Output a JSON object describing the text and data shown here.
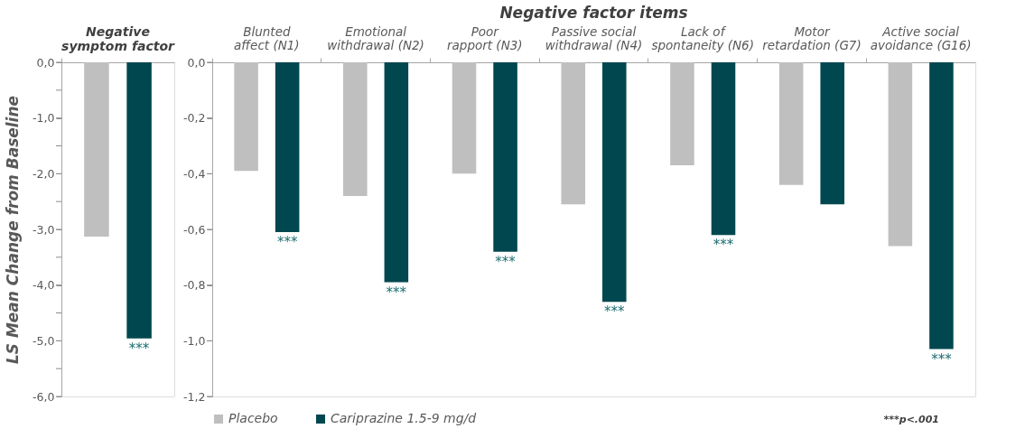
{
  "chart_data": [
    {
      "type": "bar",
      "ylabel": "LS Mean Change from Baseline",
      "categories": [
        "Negative symptom factor"
      ],
      "series": [
        {
          "color": "#bfbfbf",
          "values": [
            -3.13
          ]
        },
        {
          "color": "#00474f",
          "values": [
            -4.96
          ],
          "value_labels": [
            "***"
          ]
        }
      ],
      "ylim": [
        -6,
        0
      ],
      "yticks": [
        {
          "value": 0,
          "label": "0,0"
        },
        {
          "value": -0.5,
          "label": null
        },
        {
          "value": -1,
          "label": "-1,0"
        },
        {
          "value": -1.5,
          "label": null
        },
        {
          "value": -2,
          "label": "-2,0"
        },
        {
          "value": -2.5,
          "label": null
        },
        {
          "value": -3,
          "label": "-3,0"
        },
        {
          "value": -3.5,
          "label": null
        },
        {
          "value": -4,
          "label": "-4,0"
        },
        {
          "value": -4.5,
          "label": null
        },
        {
          "value": -5,
          "label": "-5,0"
        },
        {
          "value": -5.5,
          "label": null
        },
        {
          "value": -6,
          "label": "-6,0"
        }
      ],
      "legend": false,
      "grid": false
    },
    {
      "type": "bar",
      "title": "Negative factor items",
      "categories": [
        "Blunted affect (N1)",
        "Emotional withdrawal (N2)",
        "Poor rapport (N3)",
        "Passive social withdrawal (N4)",
        "Lack of spontaneity (N6)",
        "Motor retardation (G7)",
        "Active social avoidance (G16)"
      ],
      "series": [
        {
          "name": "Placebo",
          "color": "#bfbfbf",
          "values": [
            -0.39,
            -0.48,
            -0.4,
            -0.51,
            -0.37,
            -0.44,
            -0.66
          ]
        },
        {
          "name": "Cariprazine 1.5-9 mg/d",
          "color": "#00474f",
          "values": [
            -0.61,
            -0.79,
            -0.68,
            -0.86,
            -0.62,
            -0.51,
            -1.03
          ],
          "value_labels": [
            "***",
            "***",
            "***",
            "***",
            "***",
            null,
            "***"
          ]
        }
      ],
      "ylim": [
        -1.2,
        0
      ],
      "yticks": [
        {
          "value": 0,
          "label": "0,0"
        },
        {
          "value": -0.2,
          "label": "-0,2"
        },
        {
          "value": -0.4,
          "label": "-0,4"
        },
        {
          "value": -0.6,
          "label": "-0,6"
        },
        {
          "value": -0.8,
          "label": "-0,8"
        },
        {
          "value": -1,
          "label": "-1,0"
        },
        {
          "value": -1.2,
          "label": "-1,2"
        }
      ],
      "annotations": [
        "***p<.001"
      ],
      "legend": "bottom",
      "grid": false
    }
  ]
}
